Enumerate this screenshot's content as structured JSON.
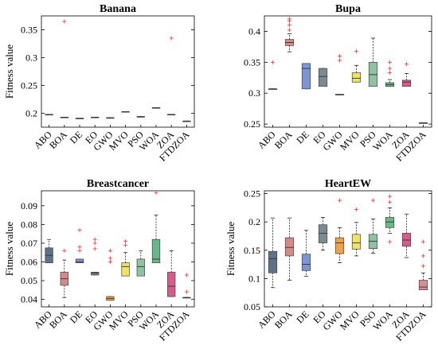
{
  "chart_data": [
    {
      "type": "box",
      "title": "Banana",
      "ylabel": "Fitness value",
      "categories": [
        "ABO",
        "BOA",
        "DE",
        "EO",
        "GWO",
        "MVO",
        "PSO",
        "WOA",
        "ZOA",
        "FTDZOA"
      ],
      "ylim": [
        0.175,
        0.375
      ],
      "yticks": [
        0.2,
        0.25,
        0.3,
        0.35
      ],
      "yticklabels": [
        "0.2",
        "0.25",
        "0.3",
        "0.35"
      ],
      "boxes": [
        {
          "min": 0.198,
          "q1": 0.198,
          "median": 0.198,
          "q3": 0.198,
          "max": 0.198,
          "outliers": []
        },
        {
          "min": 0.193,
          "q1": 0.193,
          "median": 0.193,
          "q3": 0.193,
          "max": 0.193,
          "outliers": [
            0.365
          ]
        },
        {
          "min": 0.191,
          "q1": 0.191,
          "median": 0.191,
          "q3": 0.191,
          "max": 0.191,
          "outliers": []
        },
        {
          "min": 0.193,
          "q1": 0.193,
          "median": 0.193,
          "q3": 0.193,
          "max": 0.193,
          "outliers": []
        },
        {
          "min": 0.192,
          "q1": 0.192,
          "median": 0.192,
          "q3": 0.192,
          "max": 0.192,
          "outliers": []
        },
        {
          "min": 0.203,
          "q1": 0.203,
          "median": 0.203,
          "q3": 0.203,
          "max": 0.203,
          "outliers": []
        },
        {
          "min": 0.194,
          "q1": 0.194,
          "median": 0.194,
          "q3": 0.194,
          "max": 0.194,
          "outliers": []
        },
        {
          "min": 0.21,
          "q1": 0.21,
          "median": 0.21,
          "q3": 0.21,
          "max": 0.21,
          "outliers": []
        },
        {
          "min": 0.198,
          "q1": 0.198,
          "median": 0.198,
          "q3": 0.198,
          "max": 0.198,
          "outliers": [
            0.335
          ]
        },
        {
          "min": 0.186,
          "q1": 0.186,
          "median": 0.186,
          "q3": 0.186,
          "max": 0.186,
          "outliers": []
        }
      ]
    },
    {
      "type": "box",
      "title": "Bupa",
      "ylabel": "",
      "categories": [
        "ABO",
        "BOA",
        "DE",
        "EO",
        "GWO",
        "MVO",
        "PSO",
        "WOA",
        "ZOA",
        "FTDZOA"
      ],
      "ylim": [
        0.245,
        0.425
      ],
      "yticks": [
        0.25,
        0.3,
        0.35,
        0.4
      ],
      "yticklabels": [
        "0.25",
        "0.3",
        "0.35",
        "0.4"
      ],
      "boxes": [
        {
          "min": 0.307,
          "q1": 0.307,
          "median": 0.307,
          "q3": 0.307,
          "max": 0.307,
          "outliers": [
            0.35
          ]
        },
        {
          "min": 0.367,
          "q1": 0.377,
          "median": 0.382,
          "q3": 0.387,
          "max": 0.396,
          "outliers": [
            0.402,
            0.41,
            0.417,
            0.42
          ]
        },
        {
          "min": 0.307,
          "q1": 0.307,
          "median": 0.34,
          "q3": 0.348,
          "max": 0.348,
          "outliers": []
        },
        {
          "min": 0.311,
          "q1": 0.311,
          "median": 0.327,
          "q3": 0.34,
          "max": 0.34,
          "outliers": []
        },
        {
          "min": 0.298,
          "q1": 0.298,
          "median": 0.298,
          "q3": 0.298,
          "max": 0.298,
          "outliers": [
            0.353,
            0.36
          ]
        },
        {
          "min": 0.318,
          "q1": 0.318,
          "median": 0.324,
          "q3": 0.333,
          "max": 0.345,
          "outliers": [
            0.368
          ]
        },
        {
          "min": 0.311,
          "q1": 0.311,
          "median": 0.33,
          "q3": 0.35,
          "max": 0.389,
          "outliers": []
        },
        {
          "min": 0.311,
          "q1": 0.311,
          "median": 0.314,
          "q3": 0.317,
          "max": 0.322,
          "outliers": [
            0.333,
            0.34,
            0.35
          ]
        },
        {
          "min": 0.311,
          "q1": 0.311,
          "median": 0.318,
          "q3": 0.321,
          "max": 0.332,
          "outliers": [
            0.347
          ]
        },
        {
          "min": 0.252,
          "q1": 0.252,
          "median": 0.252,
          "q3": 0.252,
          "max": 0.252,
          "outliers": []
        }
      ]
    },
    {
      "type": "box",
      "title": "Breastcancer",
      "ylabel": "Fitness value",
      "categories": [
        "ABO",
        "BOA",
        "DE",
        "EO",
        "GWO",
        "MVO",
        "PSO",
        "WOA",
        "ZOA",
        "FTDZOA"
      ],
      "ylim": [
        0.036,
        0.098
      ],
      "yticks": [
        0.04,
        0.05,
        0.06,
        0.07,
        0.08,
        0.09
      ],
      "yticklabels": [
        "0.04",
        "0.05",
        "0.06",
        "0.07",
        "0.08",
        "0.09"
      ],
      "boxes": [
        {
          "min": 0.0595,
          "q1": 0.0595,
          "median": 0.0635,
          "q3": 0.0675,
          "max": 0.072,
          "outliers": []
        },
        {
          "min": 0.041,
          "q1": 0.0475,
          "median": 0.051,
          "q3": 0.0545,
          "max": 0.061,
          "outliers": [
            0.066
          ]
        },
        {
          "min": 0.0595,
          "q1": 0.0595,
          "median": 0.06,
          "q3": 0.0615,
          "max": 0.0615,
          "outliers": [
            0.066,
            0.068,
            0.077
          ]
        },
        {
          "min": 0.053,
          "q1": 0.053,
          "median": 0.054,
          "q3": 0.0545,
          "max": 0.0545,
          "outliers": [
            0.067,
            0.07,
            0.072
          ]
        },
        {
          "min": 0.0395,
          "q1": 0.0395,
          "median": 0.0405,
          "q3": 0.0415,
          "max": 0.0415,
          "outliers": [
            0.06,
            0.062,
            0.066
          ]
        },
        {
          "min": 0.0525,
          "q1": 0.0525,
          "median": 0.0575,
          "q3": 0.0595,
          "max": 0.065,
          "outliers": [
            0.069,
            0.071
          ]
        },
        {
          "min": 0.0525,
          "q1": 0.0525,
          "median": 0.0575,
          "q3": 0.0615,
          "max": 0.066,
          "outliers": []
        },
        {
          "min": 0.0595,
          "q1": 0.0595,
          "median": 0.0615,
          "q3": 0.072,
          "max": 0.085,
          "outliers": [
            0.097
          ]
        },
        {
          "min": 0.0415,
          "q1": 0.0415,
          "median": 0.047,
          "q3": 0.0545,
          "max": 0.066,
          "outliers": []
        },
        {
          "min": 0.041,
          "q1": 0.041,
          "median": 0.041,
          "q3": 0.041,
          "max": 0.041,
          "outliers": [
            0.044,
            0.053
          ]
        }
      ]
    },
    {
      "type": "box",
      "title": "HeartEW",
      "ylabel": "Fitness value",
      "categories": [
        "ABO",
        "BOA",
        "DE",
        "EO",
        "GWO",
        "MVO",
        "PSO",
        "WOA",
        "ZOA",
        "FTDZOA"
      ],
      "ylim": [
        0.05,
        0.255
      ],
      "yticks": [
        0.05,
        0.1,
        0.15,
        0.2,
        0.25
      ],
      "yticklabels": [
        "0.05",
        "0.1",
        "0.15",
        "0.2",
        "0.25"
      ],
      "boxes": [
        {
          "min": 0.084,
          "q1": 0.11,
          "median": 0.135,
          "q3": 0.148,
          "max": 0.207,
          "outliers": []
        },
        {
          "min": 0.097,
          "q1": 0.14,
          "median": 0.155,
          "q3": 0.172,
          "max": 0.207,
          "outliers": []
        },
        {
          "min": 0.104,
          "q1": 0.114,
          "median": 0.125,
          "q3": 0.143,
          "max": 0.185,
          "outliers": []
        },
        {
          "min": 0.15,
          "q1": 0.163,
          "median": 0.18,
          "q3": 0.195,
          "max": 0.208,
          "outliers": []
        },
        {
          "min": 0.128,
          "q1": 0.144,
          "median": 0.163,
          "q3": 0.172,
          "max": 0.19,
          "outliers": [
            0.238
          ]
        },
        {
          "min": 0.14,
          "q1": 0.152,
          "median": 0.163,
          "q3": 0.178,
          "max": 0.199,
          "outliers": [
            0.222
          ]
        },
        {
          "min": 0.145,
          "q1": 0.153,
          "median": 0.166,
          "q3": 0.178,
          "max": 0.205,
          "outliers": [
            0.238
          ]
        },
        {
          "min": 0.18,
          "q1": 0.19,
          "median": 0.2,
          "q3": 0.208,
          "max": 0.225,
          "outliers": [
            0.165,
            0.235,
            0.245
          ]
        },
        {
          "min": 0.137,
          "q1": 0.157,
          "median": 0.168,
          "q3": 0.18,
          "max": 0.214,
          "outliers": []
        },
        {
          "min": 0.08,
          "q1": 0.08,
          "median": 0.085,
          "q3": 0.097,
          "max": 0.11,
          "outliers": [
            0.122,
            0.14,
            0.165
          ]
        }
      ]
    }
  ],
  "colors": [
    "#5d7288",
    "#d48a88",
    "#7e95d4",
    "#7c8a92",
    "#f0a148",
    "#f0e265",
    "#8fc2a0",
    "#67b98a",
    "#d65c8c",
    "#d98d93"
  ],
  "outlier_color": "#ff3030"
}
